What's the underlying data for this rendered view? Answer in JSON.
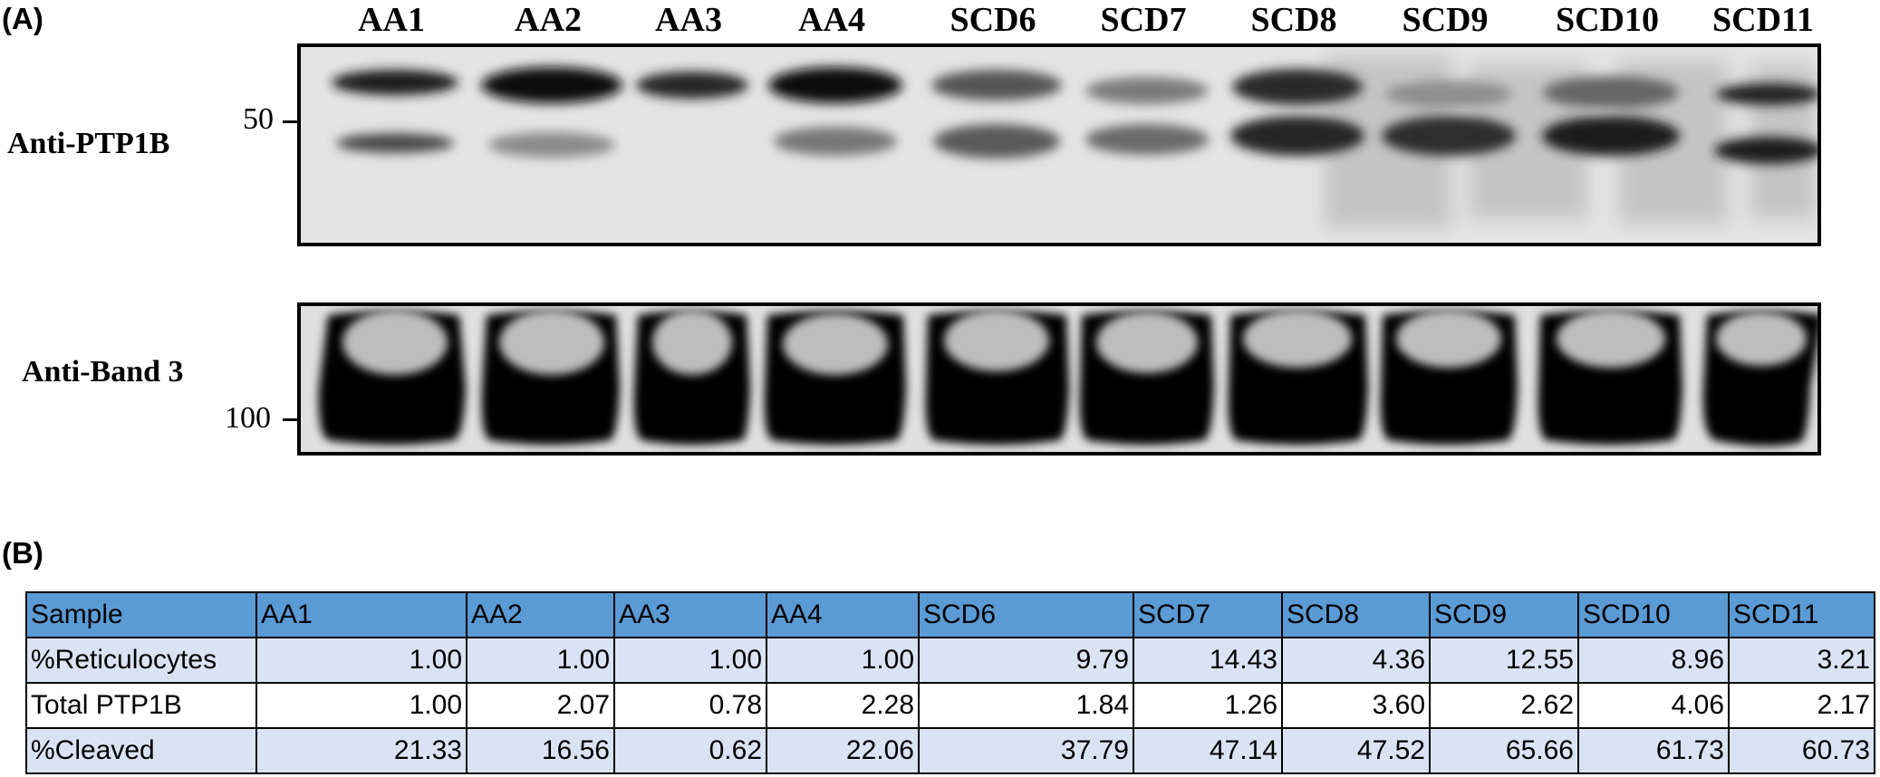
{
  "panel_a": {
    "label": "(A)",
    "lanes": [
      "AA1",
      "AA2",
      "AA3",
      "AA4",
      "SCD6",
      "SCD7",
      "SCD8",
      "SCD9",
      "SCD10",
      "SCD11"
    ],
    "rows": {
      "ptp1b": {
        "label": "Anti-PTP1B",
        "marker": "50"
      },
      "band3": {
        "label": "Anti-Band 3",
        "marker": "100"
      }
    }
  },
  "panel_b": {
    "label": "(B)",
    "table": {
      "header": [
        "Sample",
        "AA1",
        "AA2",
        "AA3",
        "AA4",
        "SCD6",
        "SCD7",
        "SCD8",
        "SCD9",
        "SCD10",
        "SCD11"
      ],
      "rows": [
        [
          "%Reticulocytes",
          "1.00",
          "1.00",
          "1.00",
          "1.00",
          "9.79",
          "14.43",
          "4.36",
          "12.55",
          "8.96",
          "3.21"
        ],
        [
          "Total PTP1B",
          "1.00",
          "2.07",
          "0.78",
          "2.28",
          "1.84",
          "1.26",
          "3.60",
          "2.62",
          "4.06",
          "2.17"
        ],
        [
          "%Cleaved",
          "21.33",
          "16.56",
          "0.62",
          "22.06",
          "37.79",
          "47.14",
          "47.52",
          "65.66",
          "61.73",
          "60.73"
        ]
      ]
    }
  }
}
